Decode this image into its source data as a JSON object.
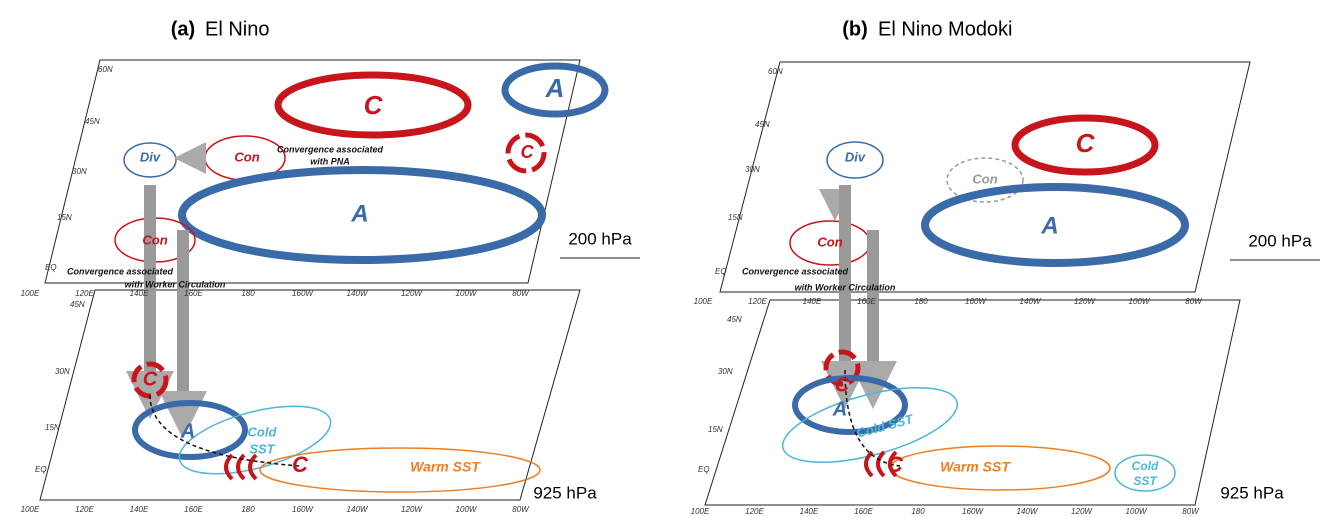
{
  "panels": [
    {
      "label": "(a)",
      "title": "El Nino",
      "upper": {
        "level": "200 hPa",
        "lat_labels": [
          "60N",
          "45N",
          "30N",
          "15N",
          "EQ"
        ],
        "lon_labels": [
          "100E",
          "120E",
          "140E",
          "160E",
          "180",
          "160W",
          "140W",
          "120W",
          "100W",
          "80W"
        ],
        "annotations": [
          "C",
          "A",
          "Div",
          "Con",
          "C",
          "Convergence associated",
          "with PNA",
          "A",
          "Con",
          "Convergence associated",
          "with Worker Circulation"
        ]
      },
      "lower": {
        "level": "925 hPa",
        "lat_labels": [
          "45N",
          "30N",
          "15N",
          "EQ"
        ],
        "lon_labels": [
          "100E",
          "120E",
          "140E",
          "160E",
          "180",
          "160W",
          "140W",
          "120W",
          "100W",
          "80W"
        ],
        "annotations": [
          "C",
          "A",
          "Cold",
          "SST",
          "C",
          "Warm SST"
        ]
      }
    },
    {
      "label": "(b)",
      "title": "El Nino Modoki",
      "upper": {
        "level": "200 hPa",
        "lat_labels": [
          "60N",
          "45N",
          "30N",
          "15N",
          "EQ"
        ],
        "lon_labels": [
          "100E",
          "120E",
          "140E",
          "160E",
          "180",
          "160W",
          "140W",
          "120W",
          "100W",
          "80W"
        ],
        "annotations": [
          "Div",
          "C",
          "Con",
          "A",
          "Con",
          "Convergence associated",
          "with Worker Circulation"
        ]
      },
      "lower": {
        "level": "925 hPa",
        "lat_labels": [
          "45N",
          "30N",
          "15N",
          "EQ"
        ],
        "lon_labels": [
          "100E",
          "120E",
          "140E",
          "160E",
          "180",
          "160W",
          "140W",
          "120W",
          "100W",
          "80W"
        ],
        "annotations": [
          "C",
          "A",
          "Cold SST",
          "C",
          "Warm SST",
          "Cold",
          "SST"
        ]
      }
    }
  ]
}
